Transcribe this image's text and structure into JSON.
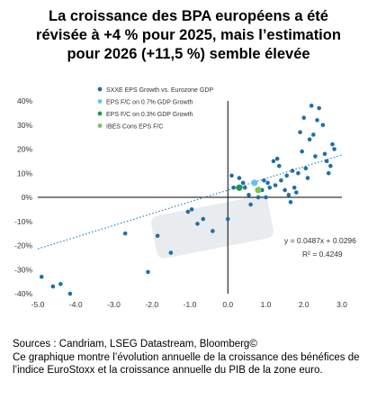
{
  "title_lines": [
    "La croissance des BPA européens a été",
    "révisée à +4 % pour 2025, mais l’estimation",
    "pour 2026 (+11,5 %) semble élevée"
  ],
  "footer": {
    "source": "Sources : Candriam, LSEG Datastream, Bloomberg©",
    "description": "Ce graphique montre l’évolution annuelle de la croissance des bénéfices de l’indice EuroStoxx et la croissance annuelle du PIB de la zone euro."
  },
  "colors": {
    "sxxe": "#1f6fa8",
    "fc07": "#63c1ef",
    "fc03": "#1f9a4c",
    "ibes": "#7cc44e",
    "trend": "#2a86c2",
    "highlight": "#e9ecef"
  },
  "chart_data": {
    "type": "scatter",
    "xlim": [
      -5.0,
      3.0
    ],
    "ylim": [
      -40,
      40
    ],
    "x_ticks": [
      "-5.0",
      "-4.0",
      "-3.0",
      "-2.0",
      "-1.0",
      "0.0",
      "1.0",
      "2.0",
      "3.0"
    ],
    "x_tick_values": [
      -5,
      -4,
      -3,
      -2,
      -1,
      0,
      1,
      2,
      3
    ],
    "y_ticks": [
      "-40%",
      "-30%",
      "-20%",
      "-10%",
      "0%",
      "10%",
      "20%",
      "30%",
      "40%"
    ],
    "y_tick_values": [
      -40,
      -30,
      -20,
      -10,
      0,
      10,
      20,
      30,
      40
    ],
    "legend_position": "top-right",
    "trendline": {
      "slope": 4.87,
      "intercept": 2.96,
      "equation": "y = 0.0487x + 0.0296",
      "r_squared": "R² = 0.4249"
    },
    "series": [
      {
        "name": "SXXE EPS Growth vs. Eurozone GDP",
        "values": [
          [
            -4.9,
            -33
          ],
          [
            -4.6,
            -37
          ],
          [
            -4.4,
            -36
          ],
          [
            -4.15,
            -40
          ],
          [
            -2.7,
            -15
          ],
          [
            -2.1,
            -31
          ],
          [
            -1.85,
            -16
          ],
          [
            -1.5,
            -23
          ],
          [
            -1.05,
            -6
          ],
          [
            -0.95,
            -5
          ],
          [
            -0.8,
            -11
          ],
          [
            -0.65,
            -9
          ],
          [
            -0.4,
            -14
          ],
          [
            0.0,
            -9
          ],
          [
            0.15,
            4
          ],
          [
            0.1,
            9
          ],
          [
            0.3,
            8
          ],
          [
            0.4,
            6
          ],
          [
            0.45,
            4
          ],
          [
            0.55,
            1
          ],
          [
            0.6,
            -3
          ],
          [
            0.8,
            0
          ],
          [
            0.9,
            3
          ],
          [
            0.95,
            7
          ],
          [
            1.0,
            0
          ],
          [
            1.05,
            6
          ],
          [
            1.1,
            4
          ],
          [
            1.2,
            15
          ],
          [
            1.25,
            5
          ],
          [
            1.3,
            16
          ],
          [
            1.35,
            13
          ],
          [
            1.4,
            7
          ],
          [
            1.5,
            3
          ],
          [
            1.55,
            9
          ],
          [
            1.6,
            1
          ],
          [
            1.65,
            -2
          ],
          [
            1.7,
            11
          ],
          [
            1.75,
            4
          ],
          [
            1.8,
            2
          ],
          [
            1.85,
            10
          ],
          [
            1.9,
            27
          ],
          [
            1.95,
            19
          ],
          [
            2.0,
            33
          ],
          [
            2.05,
            12
          ],
          [
            2.1,
            8
          ],
          [
            2.15,
            24
          ],
          [
            2.2,
            38
          ],
          [
            2.25,
            26
          ],
          [
            2.3,
            17
          ],
          [
            2.35,
            32
          ],
          [
            2.4,
            37
          ],
          [
            2.5,
            30
          ],
          [
            2.55,
            18
          ],
          [
            2.6,
            15
          ],
          [
            2.65,
            10
          ],
          [
            2.7,
            13
          ],
          [
            2.75,
            22
          ],
          [
            2.8,
            20
          ]
        ]
      },
      {
        "name": "EPS F/C on 0.7% GDP Growth",
        "values": [
          [
            0.7,
            6
          ]
        ]
      },
      {
        "name": "EPS F/C on 0.3% GDP Growth",
        "values": [
          [
            0.3,
            4
          ]
        ]
      },
      {
        "name": "IBES Cons EPS F/C",
        "values": [
          [
            0.8,
            3
          ]
        ]
      }
    ]
  }
}
